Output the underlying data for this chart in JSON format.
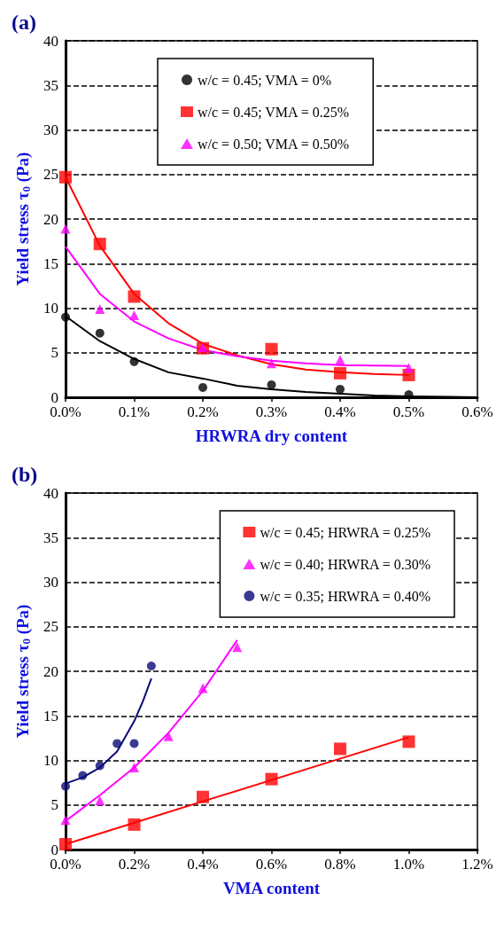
{
  "chart_data": [
    {
      "type": "scatter",
      "title": "(a)",
      "xlabel": "HRWRA dry content",
      "ylabel": "Yield stress τ$_{0}$ (Pa)",
      "xlim": [
        0,
        0.6
      ],
      "xticks": [
        {
          "value": 0,
          "label": "0.0%"
        },
        {
          "value": 0.1,
          "label": "0.1%"
        },
        {
          "value": 0.2,
          "label": "0.2%"
        },
        {
          "value": 0.3,
          "label": "0.3%"
        },
        {
          "value": 0.4,
          "label": "0.4%"
        },
        {
          "value": 0.5,
          "label": "0.5%"
        },
        {
          "value": 0.6,
          "label": "0.6%"
        }
      ],
      "ylim": [
        0,
        40
      ],
      "yticks": [
        0,
        5,
        10,
        15,
        20,
        25,
        30,
        35,
        40
      ],
      "grid": "y",
      "legend": "top",
      "series": [
        {
          "name": "w/c = 0.45; VMA = 0%",
          "color": "#000000",
          "marker": "circle",
          "x": [
            0,
            0.05,
            0.1,
            0.2,
            0.3,
            0.4,
            0.5
          ],
          "values": [
            9.0,
            7.2,
            4.0,
            1.1,
            1.4,
            0.9,
            0.3
          ]
        },
        {
          "name": "w/c = 0.45; VMA = 0.25%",
          "color": "#ff0000",
          "marker": "square",
          "x": [
            0,
            0.05,
            0.1,
            0.2,
            0.3,
            0.4,
            0.5
          ],
          "values": [
            24.7,
            17.2,
            11.3,
            5.5,
            5.4,
            2.7,
            2.5
          ]
        },
        {
          "name": "w/c = 0.50; VMA = 0.50%",
          "color": "#ff00ff",
          "marker": "triangle",
          "x": [
            0,
            0.05,
            0.1,
            0.2,
            0.3,
            0.4,
            0.5
          ],
          "values": [
            18.9,
            9.9,
            9.2,
            5.6,
            3.8,
            4.2,
            3.3
          ]
        },
        {
          "type": "line",
          "color": "#000000",
          "x": [
            0,
            0.05,
            0.1,
            0.15,
            0.2,
            0.25,
            0.3,
            0.35,
            0.4,
            0.45,
            0.5,
            0.6
          ],
          "values": [
            9.1,
            6.3,
            4.3,
            2.8,
            2.1,
            1.3,
            0.9,
            0.6,
            0.4,
            0.2,
            0.1,
            0
          ]
        },
        {
          "type": "line",
          "color": "#ff0000",
          "x": [
            0,
            0.05,
            0.1,
            0.15,
            0.2,
            0.25,
            0.3,
            0.35,
            0.4,
            0.45,
            0.5
          ],
          "values": [
            24.7,
            17,
            11.6,
            8.3,
            6.0,
            4.7,
            3.7,
            3.1,
            2.8,
            2.6,
            2.5
          ]
        },
        {
          "type": "line",
          "color": "#ff00ff",
          "x": [
            0,
            0.05,
            0.1,
            0.15,
            0.2,
            0.25,
            0.3,
            0.35,
            0.4,
            0.5
          ],
          "values": [
            16.9,
            11.6,
            8.5,
            6.6,
            5.3,
            4.6,
            4.1,
            3.8,
            3.6,
            3.5
          ]
        }
      ]
    },
    {
      "type": "scatter",
      "title": "(b)",
      "xlabel": "VMA content",
      "ylabel": "Yield stress τ$_{0}$ (Pa)",
      "xlim": [
        0,
        1.2
      ],
      "xticks": [
        {
          "value": 0,
          "label": "0.0%"
        },
        {
          "value": 0.2,
          "label": "0.2%"
        },
        {
          "value": 0.4,
          "label": "0.4%"
        },
        {
          "value": 0.6,
          "label": "0.6%"
        },
        {
          "value": 0.8,
          "label": "0.8%"
        },
        {
          "value": 1.0,
          "label": "1.0%"
        },
        {
          "value": 1.2,
          "label": "1.2%"
        }
      ],
      "ylim": [
        0,
        40
      ],
      "yticks": [
        0,
        5,
        10,
        15,
        20,
        25,
        30,
        35,
        40
      ],
      "grid": "y",
      "legend": "top right",
      "series": [
        {
          "name": "w/c = 0.45; HRWRA = 0.25%",
          "color": "#ff0000",
          "marker": "square",
          "x": [
            0,
            0.2,
            0.4,
            0.6,
            0.8,
            1.0
          ],
          "values": [
            0.6,
            2.8,
            5.9,
            7.9,
            11.3,
            12.1
          ]
        },
        {
          "name": "w/c = 0.40; HRWRA = 0.30%",
          "color": "#ff00ff",
          "marker": "triangle",
          "x": [
            0,
            0.1,
            0.2,
            0.3,
            0.4,
            0.5
          ],
          "values": [
            3.3,
            5.5,
            9.2,
            12.7,
            18.1,
            22.7
          ]
        },
        {
          "name": "w/c = 0.35; HRWRA = 0.40%",
          "color": "#0a0a78",
          "marker": "circle",
          "x": [
            0,
            0.05,
            0.1,
            0.15,
            0.2,
            0.25
          ],
          "values": [
            7.1,
            8.3,
            9.4,
            11.9,
            11.9,
            20.6
          ]
        },
        {
          "type": "line",
          "color": "#ff0000",
          "x": [
            0,
            1.0
          ],
          "values": [
            0.6,
            12.6
          ]
        },
        {
          "type": "line",
          "color": "#ff00ff",
          "x": [
            0,
            0.1,
            0.2,
            0.3,
            0.4,
            0.5
          ],
          "values": [
            3.2,
            6.1,
            9.2,
            13.1,
            17.8,
            23.5
          ]
        },
        {
          "type": "line",
          "color": "#0a0a78",
          "x": [
            0,
            0.05,
            0.1,
            0.15,
            0.2,
            0.225,
            0.25
          ],
          "values": [
            7.4,
            8.1,
            9.2,
            11.0,
            14.4,
            16.6,
            19.2
          ]
        }
      ]
    }
  ]
}
